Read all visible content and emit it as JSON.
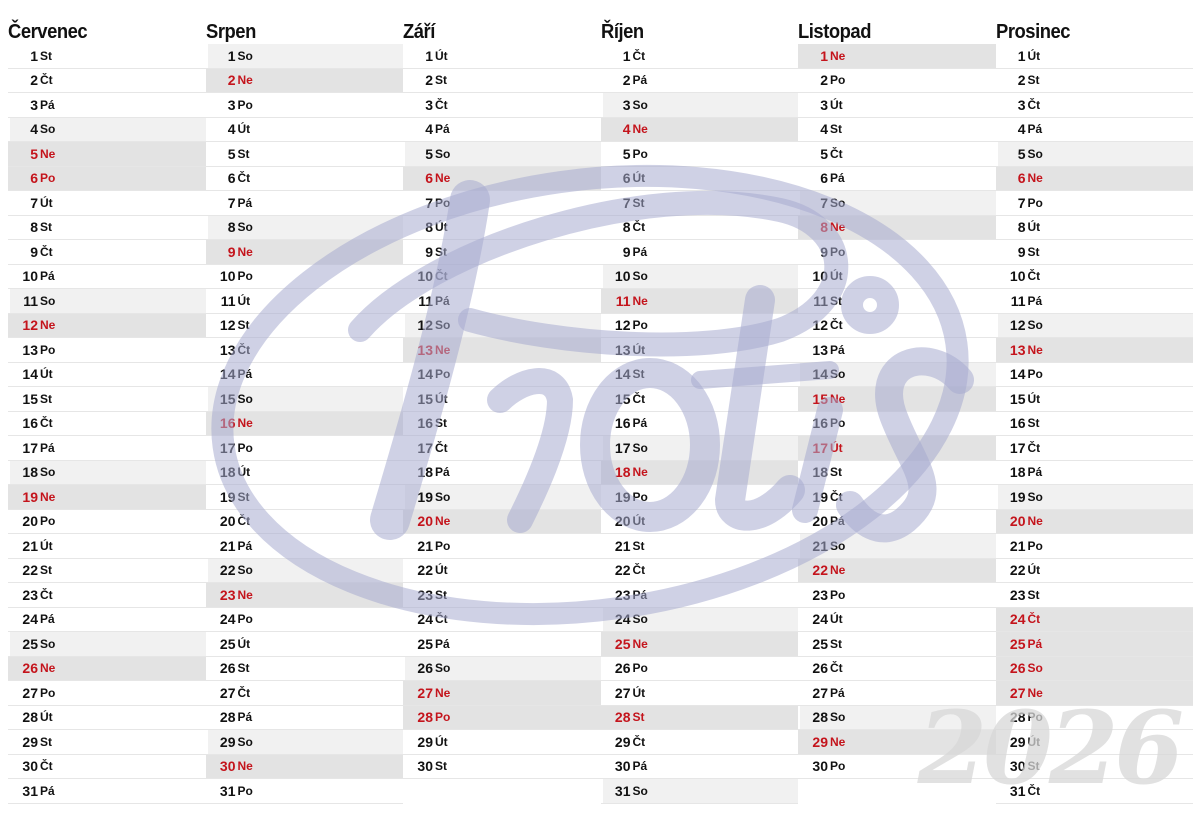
{
  "year": "2026",
  "logo_text": "Protis",
  "colors": {
    "holiday": "#c4141c",
    "weekend_shade": "#e3e3e3",
    "logo": "#a8acd0"
  },
  "months": [
    {
      "name": "Červenec",
      "days": [
        {
          "d": "1",
          "w": "St"
        },
        {
          "d": "2",
          "w": "Čt"
        },
        {
          "d": "3",
          "w": "Pá"
        },
        {
          "d": "4",
          "w": "So"
        },
        {
          "d": "5",
          "w": "Ne",
          "red": true
        },
        {
          "d": "6",
          "w": "Po",
          "red": true
        },
        {
          "d": "7",
          "w": "Út"
        },
        {
          "d": "8",
          "w": "St"
        },
        {
          "d": "9",
          "w": "Čt"
        },
        {
          "d": "10",
          "w": "Pá"
        },
        {
          "d": "11",
          "w": "So"
        },
        {
          "d": "12",
          "w": "Ne",
          "red": true
        },
        {
          "d": "13",
          "w": "Po"
        },
        {
          "d": "14",
          "w": "Út"
        },
        {
          "d": "15",
          "w": "St"
        },
        {
          "d": "16",
          "w": "Čt"
        },
        {
          "d": "17",
          "w": "Pá"
        },
        {
          "d": "18",
          "w": "So"
        },
        {
          "d": "19",
          "w": "Ne",
          "red": true
        },
        {
          "d": "20",
          "w": "Po"
        },
        {
          "d": "21",
          "w": "Út"
        },
        {
          "d": "22",
          "w": "St"
        },
        {
          "d": "23",
          "w": "Čt"
        },
        {
          "d": "24",
          "w": "Pá"
        },
        {
          "d": "25",
          "w": "So"
        },
        {
          "d": "26",
          "w": "Ne",
          "red": true
        },
        {
          "d": "27",
          "w": "Po"
        },
        {
          "d": "28",
          "w": "Út"
        },
        {
          "d": "29",
          "w": "St"
        },
        {
          "d": "30",
          "w": "Čt"
        },
        {
          "d": "31",
          "w": "Pá"
        }
      ]
    },
    {
      "name": "Srpen",
      "days": [
        {
          "d": "1",
          "w": "So"
        },
        {
          "d": "2",
          "w": "Ne",
          "red": true
        },
        {
          "d": "3",
          "w": "Po"
        },
        {
          "d": "4",
          "w": "Út"
        },
        {
          "d": "5",
          "w": "St"
        },
        {
          "d": "6",
          "w": "Čt"
        },
        {
          "d": "7",
          "w": "Pá"
        },
        {
          "d": "8",
          "w": "So"
        },
        {
          "d": "9",
          "w": "Ne",
          "red": true
        },
        {
          "d": "10",
          "w": "Po"
        },
        {
          "d": "11",
          "w": "Út"
        },
        {
          "d": "12",
          "w": "St"
        },
        {
          "d": "13",
          "w": "Čt"
        },
        {
          "d": "14",
          "w": "Pá"
        },
        {
          "d": "15",
          "w": "So"
        },
        {
          "d": "16",
          "w": "Ne",
          "red": true
        },
        {
          "d": "17",
          "w": "Po"
        },
        {
          "d": "18",
          "w": "Út"
        },
        {
          "d": "19",
          "w": "St"
        },
        {
          "d": "20",
          "w": "Čt"
        },
        {
          "d": "21",
          "w": "Pá"
        },
        {
          "d": "22",
          "w": "So"
        },
        {
          "d": "23",
          "w": "Ne",
          "red": true
        },
        {
          "d": "24",
          "w": "Po"
        },
        {
          "d": "25",
          "w": "Út"
        },
        {
          "d": "26",
          "w": "St"
        },
        {
          "d": "27",
          "w": "Čt"
        },
        {
          "d": "28",
          "w": "Pá"
        },
        {
          "d": "29",
          "w": "So"
        },
        {
          "d": "30",
          "w": "Ne",
          "red": true
        },
        {
          "d": "31",
          "w": "Po"
        }
      ]
    },
    {
      "name": "Září",
      "days": [
        {
          "d": "1",
          "w": "Út"
        },
        {
          "d": "2",
          "w": "St"
        },
        {
          "d": "3",
          "w": "Čt"
        },
        {
          "d": "4",
          "w": "Pá"
        },
        {
          "d": "5",
          "w": "So"
        },
        {
          "d": "6",
          "w": "Ne",
          "red": true
        },
        {
          "d": "7",
          "w": "Po"
        },
        {
          "d": "8",
          "w": "Út"
        },
        {
          "d": "9",
          "w": "St"
        },
        {
          "d": "10",
          "w": "Čt"
        },
        {
          "d": "11",
          "w": "Pá"
        },
        {
          "d": "12",
          "w": "So"
        },
        {
          "d": "13",
          "w": "Ne",
          "red": true
        },
        {
          "d": "14",
          "w": "Po"
        },
        {
          "d": "15",
          "w": "Út"
        },
        {
          "d": "16",
          "w": "St"
        },
        {
          "d": "17",
          "w": "Čt"
        },
        {
          "d": "18",
          "w": "Pá"
        },
        {
          "d": "19",
          "w": "So"
        },
        {
          "d": "20",
          "w": "Ne",
          "red": true
        },
        {
          "d": "21",
          "w": "Po"
        },
        {
          "d": "22",
          "w": "Út"
        },
        {
          "d": "23",
          "w": "St"
        },
        {
          "d": "24",
          "w": "Čt"
        },
        {
          "d": "25",
          "w": "Pá"
        },
        {
          "d": "26",
          "w": "So"
        },
        {
          "d": "27",
          "w": "Ne",
          "red": true
        },
        {
          "d": "28",
          "w": "Po",
          "red": true
        },
        {
          "d": "29",
          "w": "Út"
        },
        {
          "d": "30",
          "w": "St"
        }
      ]
    },
    {
      "name": "Říjen",
      "days": [
        {
          "d": "1",
          "w": "Čt"
        },
        {
          "d": "2",
          "w": "Pá"
        },
        {
          "d": "3",
          "w": "So"
        },
        {
          "d": "4",
          "w": "Ne",
          "red": true
        },
        {
          "d": "5",
          "w": "Po"
        },
        {
          "d": "6",
          "w": "Út"
        },
        {
          "d": "7",
          "w": "St"
        },
        {
          "d": "8",
          "w": "Čt"
        },
        {
          "d": "9",
          "w": "Pá"
        },
        {
          "d": "10",
          "w": "So"
        },
        {
          "d": "11",
          "w": "Ne",
          "red": true
        },
        {
          "d": "12",
          "w": "Po"
        },
        {
          "d": "13",
          "w": "Út"
        },
        {
          "d": "14",
          "w": "St"
        },
        {
          "d": "15",
          "w": "Čt"
        },
        {
          "d": "16",
          "w": "Pá"
        },
        {
          "d": "17",
          "w": "So"
        },
        {
          "d": "18",
          "w": "Ne",
          "red": true
        },
        {
          "d": "19",
          "w": "Po"
        },
        {
          "d": "20",
          "w": "Út"
        },
        {
          "d": "21",
          "w": "St"
        },
        {
          "d": "22",
          "w": "Čt"
        },
        {
          "d": "23",
          "w": "Pá"
        },
        {
          "d": "24",
          "w": "So"
        },
        {
          "d": "25",
          "w": "Ne",
          "red": true
        },
        {
          "d": "26",
          "w": "Po"
        },
        {
          "d": "27",
          "w": "Út"
        },
        {
          "d": "28",
          "w": "St",
          "red": true
        },
        {
          "d": "29",
          "w": "Čt"
        },
        {
          "d": "30",
          "w": "Pá"
        },
        {
          "d": "31",
          "w": "So"
        }
      ]
    },
    {
      "name": "Listopad",
      "days": [
        {
          "d": "1",
          "w": "Ne",
          "red": true
        },
        {
          "d": "2",
          "w": "Po"
        },
        {
          "d": "3",
          "w": "Út"
        },
        {
          "d": "4",
          "w": "St"
        },
        {
          "d": "5",
          "w": "Čt"
        },
        {
          "d": "6",
          "w": "Pá"
        },
        {
          "d": "7",
          "w": "So"
        },
        {
          "d": "8",
          "w": "Ne",
          "red": true
        },
        {
          "d": "9",
          "w": "Po"
        },
        {
          "d": "10",
          "w": "Út"
        },
        {
          "d": "11",
          "w": "St"
        },
        {
          "d": "12",
          "w": "Čt"
        },
        {
          "d": "13",
          "w": "Pá"
        },
        {
          "d": "14",
          "w": "So"
        },
        {
          "d": "15",
          "w": "Ne",
          "red": true
        },
        {
          "d": "16",
          "w": "Po"
        },
        {
          "d": "17",
          "w": "Út",
          "red": true
        },
        {
          "d": "18",
          "w": "St"
        },
        {
          "d": "19",
          "w": "Čt"
        },
        {
          "d": "20",
          "w": "Pá"
        },
        {
          "d": "21",
          "w": "So"
        },
        {
          "d": "22",
          "w": "Ne",
          "red": true
        },
        {
          "d": "23",
          "w": "Po"
        },
        {
          "d": "24",
          "w": "Út"
        },
        {
          "d": "25",
          "w": "St"
        },
        {
          "d": "26",
          "w": "Čt"
        },
        {
          "d": "27",
          "w": "Pá"
        },
        {
          "d": "28",
          "w": "So"
        },
        {
          "d": "29",
          "w": "Ne",
          "red": true
        },
        {
          "d": "30",
          "w": "Po"
        }
      ]
    },
    {
      "name": "Prosinec",
      "days": [
        {
          "d": "1",
          "w": "Út"
        },
        {
          "d": "2",
          "w": "St"
        },
        {
          "d": "3",
          "w": "Čt"
        },
        {
          "d": "4",
          "w": "Pá"
        },
        {
          "d": "5",
          "w": "So"
        },
        {
          "d": "6",
          "w": "Ne",
          "red": true
        },
        {
          "d": "7",
          "w": "Po"
        },
        {
          "d": "8",
          "w": "Út"
        },
        {
          "d": "9",
          "w": "St"
        },
        {
          "d": "10",
          "w": "Čt"
        },
        {
          "d": "11",
          "w": "Pá"
        },
        {
          "d": "12",
          "w": "So"
        },
        {
          "d": "13",
          "w": "Ne",
          "red": true
        },
        {
          "d": "14",
          "w": "Po"
        },
        {
          "d": "15",
          "w": "Út"
        },
        {
          "d": "16",
          "w": "St"
        },
        {
          "d": "17",
          "w": "Čt"
        },
        {
          "d": "18",
          "w": "Pá"
        },
        {
          "d": "19",
          "w": "So"
        },
        {
          "d": "20",
          "w": "Ne",
          "red": true
        },
        {
          "d": "21",
          "w": "Po"
        },
        {
          "d": "22",
          "w": "Út"
        },
        {
          "d": "23",
          "w": "St"
        },
        {
          "d": "24",
          "w": "Čt",
          "red": true
        },
        {
          "d": "25",
          "w": "Pá",
          "red": true
        },
        {
          "d": "26",
          "w": "So",
          "red": true
        },
        {
          "d": "27",
          "w": "Ne",
          "red": true
        },
        {
          "d": "28",
          "w": "Po"
        },
        {
          "d": "29",
          "w": "Út"
        },
        {
          "d": "30",
          "w": "St"
        },
        {
          "d": "31",
          "w": "Čt"
        }
      ]
    }
  ]
}
